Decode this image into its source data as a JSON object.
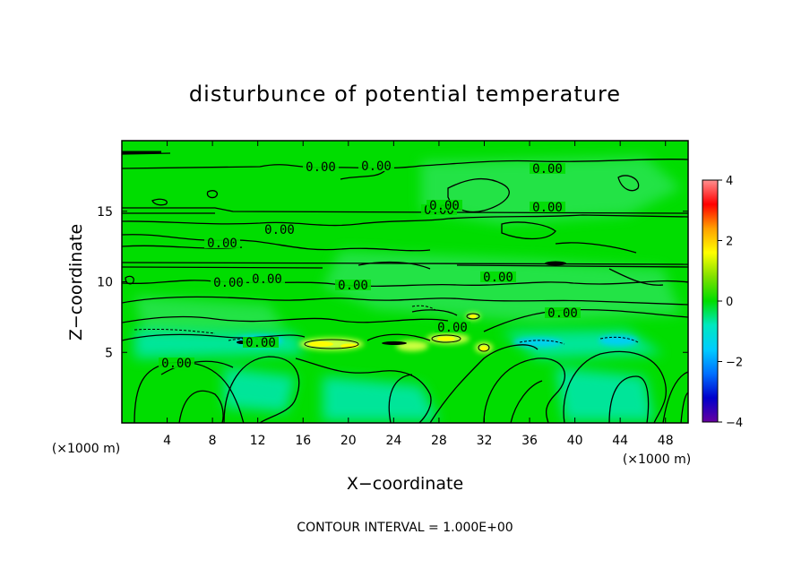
{
  "chart_data": {
    "type": "heatmap",
    "title": "disturbunce of potential temperature",
    "xlabel": "X−coordinate",
    "ylabel": "Z−coordinate",
    "x_unit": "(×1000 m)",
    "z_unit": "(×1000 m)",
    "xlim": [
      0,
      50
    ],
    "ylim": [
      0,
      20
    ],
    "x_ticks": [
      4,
      8,
      12,
      16,
      20,
      24,
      28,
      32,
      36,
      40,
      44,
      48
    ],
    "y_ticks": [
      5,
      10,
      15
    ],
    "colorbar": {
      "range": [
        -4,
        4
      ],
      "ticks": [
        4,
        2,
        0,
        -2,
        -4
      ],
      "colors": [
        "#ff9090",
        "#ff0000",
        "#ffa000",
        "#ffff00",
        "#80e000",
        "#00dd00",
        "#00e8c0",
        "#00ccff",
        "#0070ff",
        "#0000cc",
        "#6600a0"
      ]
    },
    "background_color": "#00dd00",
    "contour_labels": [
      "0.00",
      "0.00",
      "0.00",
      "0.00",
      "0.00",
      "0.00",
      "0.00",
      "0.00",
      "0.00",
      "0.00",
      "0.00",
      "0.00",
      "0.00",
      "0.00",
      "0.00",
      "0.00"
    ],
    "footer": "CONTOUR INTERVAL = 1.000E+00"
  }
}
